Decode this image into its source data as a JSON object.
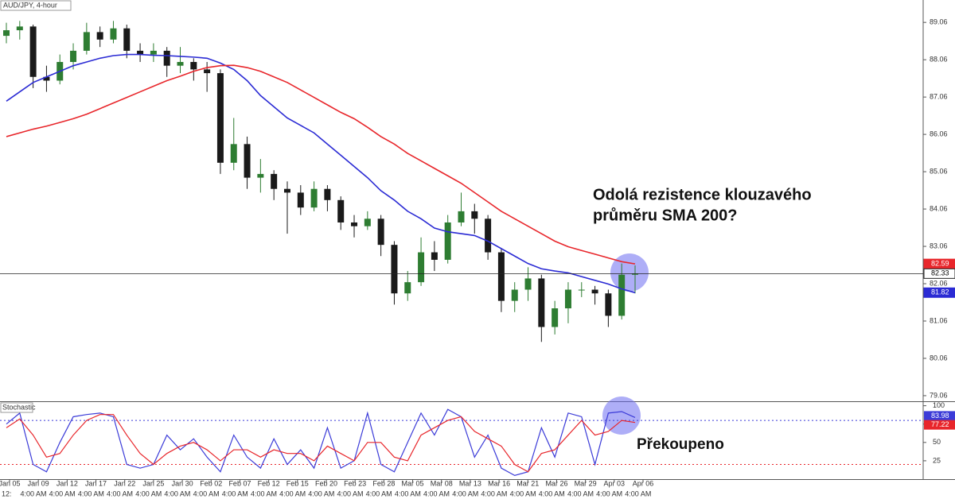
{
  "chart_data": [
    {
      "type": "candlestick",
      "title": "AUD/JPY, 4-hour",
      "annotation": [
        "Odolá rezistence klouzavého",
        "průměru SMA 200?"
      ],
      "open": [
        88.7,
        88.85,
        88.95,
        87.6,
        87.5,
        88.0,
        88.3,
        88.8,
        88.6,
        88.9,
        88.3,
        88.2,
        88.3,
        87.9,
        88.0,
        87.8,
        87.7,
        85.3,
        85.8,
        84.9,
        85.0,
        84.6,
        84.5,
        84.1,
        84.6,
        84.3,
        83.7,
        83.6,
        83.8,
        83.1,
        81.8,
        82.1,
        82.9,
        82.7,
        83.7,
        84.0,
        83.8,
        82.9,
        81.6,
        81.9,
        82.2,
        80.9,
        81.4,
        81.9,
        81.9,
        81.8,
        81.2,
        82.3
      ],
      "high": [
        89.05,
        89.1,
        89.0,
        87.9,
        88.2,
        88.5,
        89.05,
        88.95,
        89.1,
        89.0,
        88.5,
        88.5,
        88.4,
        88.4,
        88.1,
        88.0,
        87.8,
        86.5,
        86.0,
        85.4,
        85.1,
        84.8,
        84.7,
        84.8,
        84.7,
        84.4,
        83.9,
        84.0,
        83.9,
        83.2,
        82.4,
        83.3,
        83.2,
        83.9,
        84.5,
        84.2,
        83.9,
        83.0,
        82.1,
        82.5,
        82.3,
        81.6,
        82.1,
        82.1,
        82.0,
        81.9,
        82.6,
        82.55
      ],
      "low": [
        88.5,
        88.6,
        87.3,
        87.2,
        87.4,
        87.8,
        88.2,
        88.4,
        88.5,
        88.1,
        88.0,
        88.0,
        87.6,
        87.7,
        87.5,
        87.2,
        85.0,
        85.1,
        84.6,
        84.5,
        84.3,
        83.4,
        83.9,
        84.0,
        84.0,
        83.5,
        83.3,
        83.5,
        82.8,
        81.5,
        81.6,
        82.0,
        82.4,
        82.6,
        83.6,
        83.4,
        82.7,
        81.3,
        81.3,
        81.6,
        80.5,
        80.7,
        81.0,
        81.7,
        81.5,
        80.9,
        81.1,
        81.8
      ],
      "close": [
        88.85,
        88.95,
        87.6,
        87.5,
        88.0,
        88.3,
        88.8,
        88.6,
        88.9,
        88.3,
        88.2,
        88.3,
        87.9,
        88.0,
        87.8,
        87.7,
        85.3,
        85.8,
        84.9,
        85.0,
        84.6,
        84.5,
        84.1,
        84.6,
        84.3,
        83.7,
        83.6,
        83.8,
        83.1,
        81.8,
        82.1,
        82.9,
        82.7,
        83.7,
        84.0,
        83.8,
        82.9,
        81.6,
        81.9,
        82.2,
        80.9,
        81.4,
        81.9,
        81.9,
        81.8,
        81.2,
        82.3,
        82.33
      ],
      "up_color": "#2e7d32",
      "down_color": "#1a1a1a",
      "series": [
        {
          "color": "#2b2bd4",
          "values": [
            86.95,
            87.2,
            87.45,
            87.6,
            87.75,
            87.9,
            88.0,
            88.1,
            88.17,
            88.2,
            88.2,
            88.18,
            88.17,
            88.15,
            88.13,
            88.1,
            87.97,
            87.8,
            87.5,
            87.1,
            86.8,
            86.5,
            86.3,
            86.1,
            85.8,
            85.5,
            85.2,
            84.9,
            84.55,
            84.3,
            84.0,
            83.8,
            83.55,
            83.45,
            83.4,
            83.35,
            83.2,
            83.0,
            82.8,
            82.6,
            82.46,
            82.4,
            82.35,
            82.25,
            82.15,
            82.05,
            81.92,
            81.82
          ]
        },
        {
          "color": "#e8262b",
          "values": [
            86.0,
            86.1,
            86.2,
            86.28,
            86.38,
            86.48,
            86.6,
            86.75,
            86.9,
            87.05,
            87.2,
            87.35,
            87.5,
            87.62,
            87.75,
            87.85,
            87.9,
            87.91,
            87.85,
            87.75,
            87.6,
            87.45,
            87.25,
            87.05,
            86.85,
            86.65,
            86.48,
            86.25,
            86.0,
            85.8,
            85.55,
            85.35,
            85.15,
            84.95,
            84.75,
            84.5,
            84.25,
            84.0,
            83.8,
            83.6,
            83.4,
            83.2,
            83.05,
            82.95,
            82.85,
            82.75,
            82.65,
            82.59
          ]
        }
      ],
      "ylim": [
        78.91,
        89.66
      ],
      "yticks": [
        79.06,
        80.06,
        81.06,
        82.06,
        83.06,
        84.06,
        85.06,
        86.06,
        87.06,
        88.06,
        89.06
      ]
    },
    {
      "type": "line",
      "title": "Stochastic",
      "annotation": "Překoupeno",
      "series": [
        {
          "color": "#3b3bd8",
          "values": [
            75,
            90,
            20,
            10,
            50,
            85,
            88,
            90,
            85,
            20,
            15,
            20,
            60,
            40,
            55,
            30,
            10,
            60,
            30,
            15,
            55,
            20,
            40,
            15,
            70,
            15,
            25,
            90,
            20,
            10,
            50,
            90,
            60,
            95,
            85,
            30,
            60,
            15,
            5,
            10,
            70,
            30,
            90,
            85,
            20,
            90,
            92,
            83.98
          ]
        },
        {
          "color": "#e8262b",
          "values": [
            70,
            82,
            60,
            30,
            35,
            60,
            80,
            88,
            88,
            60,
            35,
            20,
            35,
            45,
            50,
            40,
            25,
            40,
            40,
            30,
            40,
            35,
            35,
            25,
            45,
            35,
            25,
            50,
            50,
            30,
            25,
            60,
            70,
            80,
            85,
            65,
            55,
            45,
            20,
            10,
            35,
            40,
            60,
            80,
            60,
            65,
            80,
            77.22
          ]
        }
      ],
      "levels": [
        {
          "value": 80,
          "color": "#3b3bd8"
        },
        {
          "value": 20,
          "color": "#e8262b"
        }
      ],
      "ylim": [
        0,
        105
      ],
      "yticks": [
        25,
        50,
        75,
        100
      ],
      "x_first_label": "12:",
      "x_tick_labels": [
        "Jan 05",
        "Jan 09",
        "Jan 12",
        "Jan 17",
        "Jan 22",
        "Jan 25",
        "Jan 30",
        "Feb 02",
        "Feb 07",
        "Feb 12",
        "Feb 15",
        "Feb 20",
        "Feb 23",
        "Feb 28",
        "Mar 05",
        "Mar 08",
        "Mar 13",
        "Mar 16",
        "Mar 21",
        "Mar 26",
        "Mar 29",
        "Apr 03",
        "Apr 06"
      ],
      "x_time_label": "4:00 AM"
    }
  ]
}
